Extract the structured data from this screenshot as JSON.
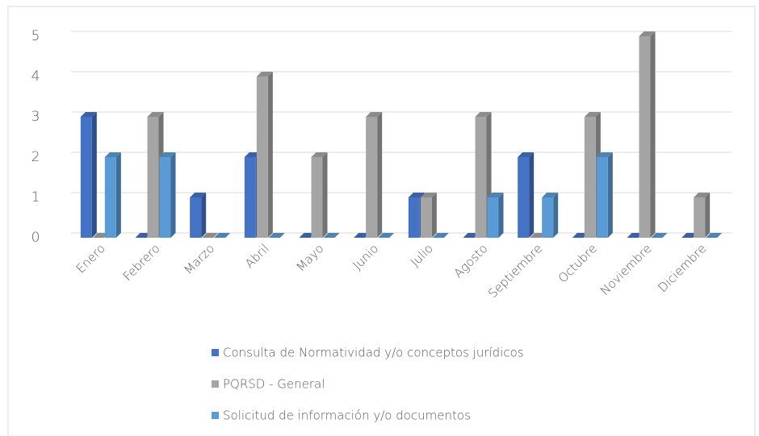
{
  "chart_data": {
    "type": "bar",
    "categories": [
      "Enero",
      "Febrero",
      "Marzo",
      "Abril",
      "Mayo",
      "Junio",
      "Julio",
      "Agosto",
      "Septiembre",
      "Octubre",
      "Noviembre",
      "Diciembre"
    ],
    "series": [
      {
        "name": "Consulta de Normatividad y/o conceptos jurídicos",
        "color": "#4472c4",
        "values": [
          3,
          0,
          1,
          2,
          0,
          0,
          1,
          0,
          2,
          0,
          0,
          0
        ]
      },
      {
        "name": "PQRSD - General",
        "color": "#a5a5a5",
        "values": [
          0,
          3,
          0,
          4,
          2,
          3,
          1,
          3,
          0,
          3,
          5,
          1
        ]
      },
      {
        "name": "Solicitud de información y/o documentos",
        "color": "#5b9bd5",
        "values": [
          2,
          2,
          0,
          0,
          0,
          0,
          0,
          1,
          1,
          2,
          0,
          0
        ]
      }
    ],
    "ylim": [
      0,
      5
    ],
    "yticks": [
      0,
      1,
      2,
      3,
      4,
      5
    ],
    "grid": true,
    "legend": "bottom"
  }
}
